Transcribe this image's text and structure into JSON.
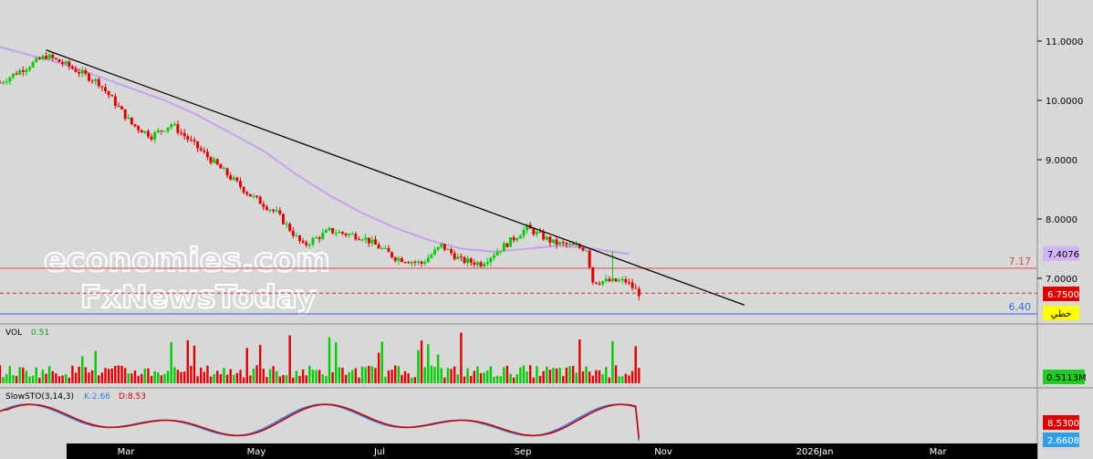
{
  "chart_data": {
    "type": "candlestick",
    "x_ticks": [
      "Mar",
      "May",
      "Jul",
      "Sep",
      "Nov",
      "2026Jan",
      "Mar"
    ],
    "y_ticks": [
      "11.0000",
      "10.0000",
      "9.0000",
      "8.0000",
      "7.0000"
    ],
    "ylim": [
      6.25,
      11.35
    ],
    "price_panel": {
      "moving_average_last": "7.4076",
      "last_price": "6.7500",
      "resistance_level": 7.17,
      "resistance_label": "7.17",
      "support_level": 6.4,
      "support_label": "6.40",
      "last_price_level": 6.75,
      "drawing_tool_label": "خطي",
      "trendline": {
        "start": [
          0.7,
          10.85
        ],
        "end": [
          11.3,
          6.55
        ]
      },
      "closes_anchor": [
        [
          0,
          10.3
        ],
        [
          0.3,
          10.5
        ],
        [
          0.7,
          10.75
        ],
        [
          1.0,
          10.6
        ],
        [
          1.5,
          10.3
        ],
        [
          2.0,
          9.6
        ],
        [
          2.3,
          9.4
        ],
        [
          2.6,
          9.6
        ],
        [
          3.0,
          9.2
        ],
        [
          3.4,
          8.8
        ],
        [
          3.8,
          8.4
        ],
        [
          4.2,
          8.1
        ],
        [
          4.6,
          7.55
        ],
        [
          5.0,
          7.8
        ],
        [
          5.5,
          7.7
        ],
        [
          6.0,
          7.35
        ],
        [
          6.4,
          7.25
        ],
        [
          6.7,
          7.55
        ],
        [
          7.0,
          7.3
        ],
        [
          7.3,
          7.25
        ],
        [
          7.6,
          7.5
        ],
        [
          8.0,
          7.85
        ],
        [
          8.4,
          7.6
        ],
        [
          8.9,
          7.5
        ],
        [
          9.0,
          6.95
        ],
        [
          9.5,
          6.95
        ],
        [
          9.7,
          6.75
        ]
      ],
      "ma_anchor": [
        [
          0,
          10.9
        ],
        [
          0.5,
          10.75
        ],
        [
          1.0,
          10.6
        ],
        [
          1.5,
          10.4
        ],
        [
          2.0,
          10.2
        ],
        [
          2.5,
          10.0
        ],
        [
          3.0,
          9.75
        ],
        [
          3.5,
          9.45
        ],
        [
          4.0,
          9.15
        ],
        [
          4.5,
          8.75
        ],
        [
          5.0,
          8.4
        ],
        [
          5.5,
          8.1
        ],
        [
          6.0,
          7.85
        ],
        [
          6.5,
          7.65
        ],
        [
          7.0,
          7.5
        ],
        [
          7.5,
          7.45
        ],
        [
          8.0,
          7.5
        ],
        [
          8.5,
          7.55
        ],
        [
          9.0,
          7.5
        ],
        [
          9.6,
          7.4
        ]
      ]
    },
    "volume_panel": {
      "label": "VOL",
      "value": "0.51",
      "axis_value": "0.5113M"
    },
    "stochastic_panel": {
      "label": "SlowSTO(3,14,3)",
      "k_label": "K:2.66",
      "d_label": "D:8.53",
      "k_axis": "2.6608",
      "d_axis": "8.5300"
    }
  },
  "watermark": {
    "line1": "economies.com",
    "line2": "FxNewsToday"
  },
  "colors": {
    "up": "#00cc00",
    "down": "#dd0000",
    "ma": "#c8a0f0",
    "resistance": "#e07070",
    "support": "#4a7ae8",
    "k": "#2f7fe0",
    "d": "#cc0000",
    "background": "#d8d8d8"
  }
}
